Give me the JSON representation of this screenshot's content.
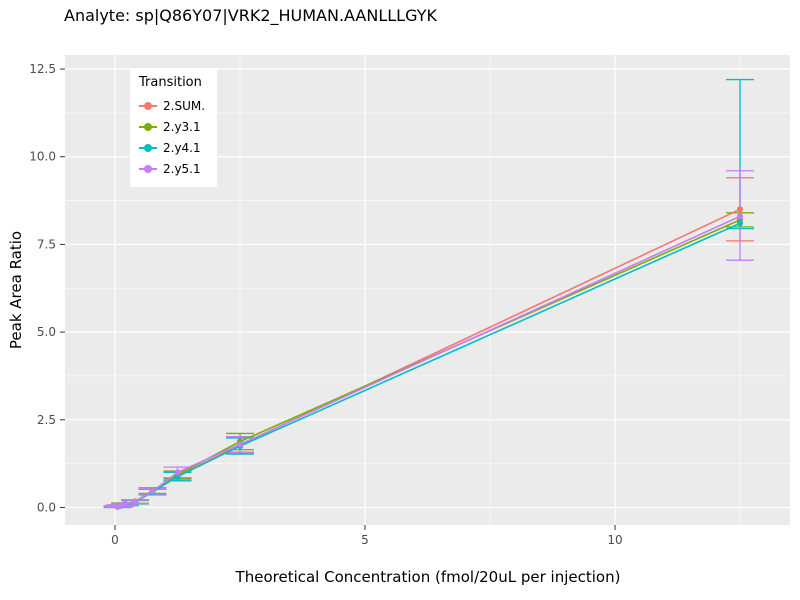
{
  "chart_data": {
    "type": "scatter",
    "title": "Analyte: sp|Q86Y07|VRK2_HUMAN.AANLLLGYK",
    "xlabel": "Theoretical Concentration (fmol/20uL per injection)",
    "ylabel": "Peak Area Ratio",
    "legend_title": "Transition",
    "legend_position": "top-left-inside",
    "panel_bg": "#EBEBEB",
    "grid_color": "#FFFFFF",
    "tick_label_color": "#4D4D4D",
    "xlim": [
      -1.0,
      13.5
    ],
    "ylim": [
      -0.5,
      12.9
    ],
    "x_ticks": [
      0,
      5,
      10
    ],
    "x_tick_labels": [
      "0",
      "5",
      "10"
    ],
    "y_ticks": [
      0.0,
      2.5,
      5.0,
      7.5,
      10.0,
      12.5
    ],
    "y_tick_labels": [
      "0.0",
      "2.5",
      "5.0",
      "7.5",
      "10.0",
      "12.5"
    ],
    "x_minor": [
      2.5,
      7.5,
      12.5
    ],
    "y_minor": [
      1.25,
      3.75,
      6.25,
      8.75,
      11.25
    ],
    "x": [
      0.05,
      0.1,
      0.2,
      0.4,
      0.75,
      1.25,
      2.5,
      12.5
    ],
    "series": [
      {
        "name": "2.SUM.",
        "color": "#F8766D",
        "y": [
          0.02,
          0.05,
          0.09,
          0.16,
          0.45,
          0.9,
          1.78,
          8.5
        ],
        "y_low": [
          0.0,
          0.03,
          0.06,
          0.11,
          0.37,
          0.78,
          1.55,
          7.6
        ],
        "y_high": [
          0.04,
          0.07,
          0.12,
          0.21,
          0.53,
          1.02,
          2.01,
          9.4
        ]
      },
      {
        "name": "2.y3.1",
        "color": "#7CAE00",
        "y": [
          0.03,
          0.05,
          0.1,
          0.17,
          0.48,
          0.93,
          1.88,
          8.2
        ],
        "y_low": [
          0.01,
          0.03,
          0.07,
          0.12,
          0.4,
          0.82,
          1.65,
          8.0
        ],
        "y_high": [
          0.05,
          0.07,
          0.13,
          0.22,
          0.56,
          1.04,
          2.11,
          8.4
        ]
      },
      {
        "name": "2.y4.1",
        "color": "#00BFC4",
        "y": [
          0.02,
          0.04,
          0.08,
          0.15,
          0.44,
          0.88,
          1.75,
          8.1
        ],
        "y_low": [
          0.0,
          0.02,
          0.05,
          0.1,
          0.36,
          0.76,
          1.52,
          7.95
        ],
        "y_high": [
          0.04,
          0.06,
          0.11,
          0.2,
          0.52,
          1.0,
          1.98,
          12.2
        ]
      },
      {
        "name": "2.y5.1",
        "color": "#C77CFF",
        "y": [
          0.03,
          0.05,
          0.09,
          0.16,
          0.46,
          1.0,
          1.8,
          8.3
        ],
        "y_low": [
          0.01,
          0.03,
          0.06,
          0.11,
          0.38,
          0.85,
          1.58,
          7.05
        ],
        "y_high": [
          0.05,
          0.07,
          0.12,
          0.21,
          0.54,
          1.15,
          2.02,
          9.6
        ]
      }
    ]
  }
}
